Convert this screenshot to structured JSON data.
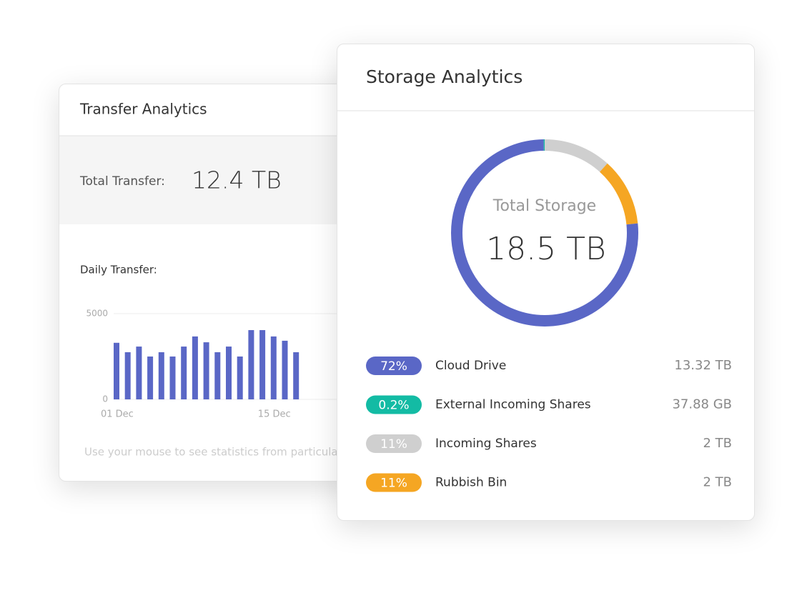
{
  "transfer_card": {
    "title": "Transfer Analytics",
    "total_label": "Total Transfer:",
    "total_value": "12.4 TB",
    "chart_label": "Daily Transfer:",
    "chart": {
      "type": "bar",
      "color": "#5a67c6",
      "categories": [
        "01 Dec",
        null,
        null,
        null,
        null,
        null,
        null,
        null,
        null,
        null,
        null,
        null,
        null,
        null,
        "15 Dec",
        null,
        null
      ],
      "values": [
        3300,
        2750,
        3080,
        2500,
        2750,
        2500,
        3080,
        3670,
        3330,
        2750,
        3080,
        2500,
        4040,
        4040,
        3670,
        3420,
        2750
      ],
      "ylim": [
        0,
        5000
      ],
      "yticks": [
        0,
        5000
      ],
      "grid": true
    },
    "hint": "Use your mouse to see statistics from particular days"
  },
  "storage_card": {
    "title": "Storage Analytics",
    "total_label": "Total Storage",
    "total_value": "18.5 TB",
    "chart": {
      "type": "donut",
      "order": [
        2,
        3,
        0,
        1
      ],
      "items": [
        {
          "name": "Cloud Drive",
          "percent": 72,
          "percent_label": "72%",
          "size": "13.32 TB",
          "color": "#5a67c6"
        },
        {
          "name": "External Incoming Shares",
          "percent": 0.2,
          "percent_label": "0.2%",
          "size": "37.88 GB",
          "color": "#13bba4"
        },
        {
          "name": "Incoming Shares",
          "percent": 11,
          "percent_label": "11%",
          "size": "2 TB",
          "color": "#cfcfcf"
        },
        {
          "name": "Rubbish Bin",
          "percent": 11,
          "percent_label": "11%",
          "size": "2 TB",
          "color": "#f5a623"
        }
      ]
    }
  }
}
